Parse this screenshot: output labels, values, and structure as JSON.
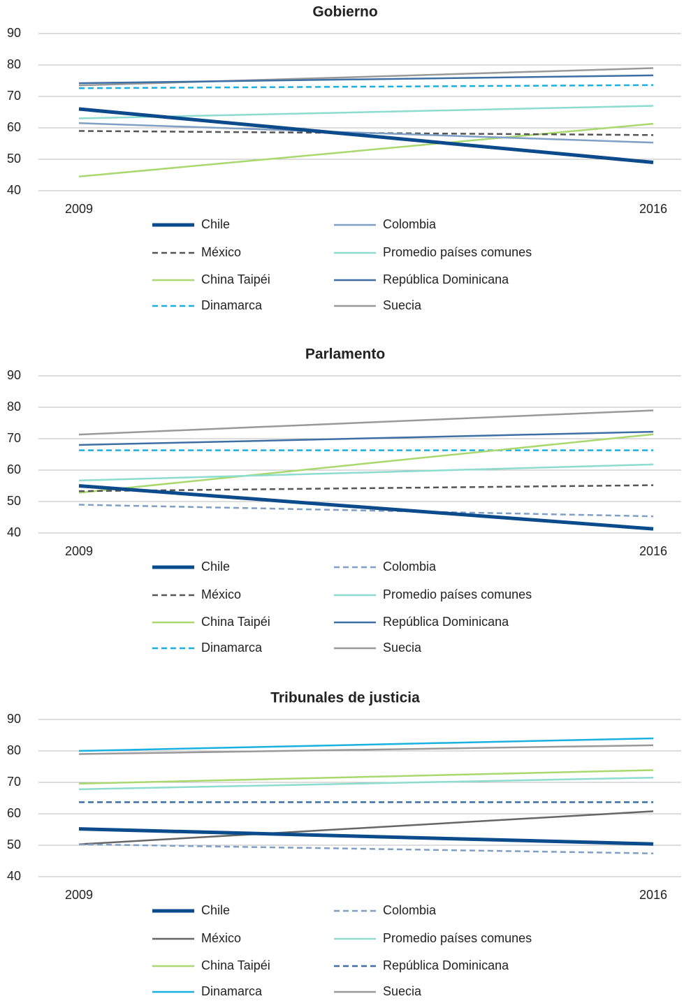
{
  "chart_data": [
    {
      "type": "line",
      "title": "Gobierno",
      "categories": [
        "2009",
        "2016"
      ],
      "ylim": [
        40,
        90
      ],
      "yticks": [
        40,
        50,
        60,
        70,
        80,
        90
      ],
      "grid": true,
      "series": [
        {
          "name": "Chile",
          "color": "#0b4a8b",
          "dash": false,
          "width": 5,
          "values": [
            66,
            49
          ]
        },
        {
          "name": "Colombia",
          "color": "#7f9fc5",
          "dash": false,
          "width": 2.5,
          "values": [
            61.5,
            55.3
          ]
        },
        {
          "name": "México",
          "color": "#555555",
          "dash": true,
          "width": 2.5,
          "values": [
            59,
            57.7
          ]
        },
        {
          "name": "Promedio países comunes",
          "color": "#8cdccf",
          "dash": false,
          "width": 2.5,
          "values": [
            63,
            67
          ]
        },
        {
          "name": "China Taipéi",
          "color": "#a8d86e",
          "dash": false,
          "width": 2.5,
          "values": [
            44.5,
            61.3
          ]
        },
        {
          "name": "República Dominicana",
          "color": "#3d6fa5",
          "dash": false,
          "width": 2.5,
          "values": [
            74.2,
            76.7
          ]
        },
        {
          "name": "Dinamarca",
          "color": "#1ab0e0",
          "dash": true,
          "width": 2.5,
          "values": [
            72.6,
            73.6
          ]
        },
        {
          "name": "Suecia",
          "color": "#999999",
          "dash": false,
          "width": 2.5,
          "values": [
            73.5,
            79
          ]
        }
      ]
    },
    {
      "type": "line",
      "title": "Parlamento",
      "categories": [
        "2009",
        "2016"
      ],
      "ylim": [
        40,
        90
      ],
      "yticks": [
        40,
        50,
        60,
        70,
        80,
        90
      ],
      "grid": true,
      "series": [
        {
          "name": "Chile",
          "color": "#0b4a8b",
          "dash": false,
          "width": 5,
          "values": [
            55,
            41.3
          ]
        },
        {
          "name": "Colombia",
          "color": "#7f9fc5",
          "dash": true,
          "width": 2.5,
          "values": [
            49,
            45.3
          ]
        },
        {
          "name": "México",
          "color": "#555555",
          "dash": true,
          "width": 2.5,
          "values": [
            53.3,
            55.2
          ]
        },
        {
          "name": "Promedio países comunes",
          "color": "#8cdccf",
          "dash": false,
          "width": 2.5,
          "values": [
            56.7,
            61.8
          ]
        },
        {
          "name": "China Taipéi",
          "color": "#a8d86e",
          "dash": false,
          "width": 2.5,
          "values": [
            52.8,
            71.4
          ]
        },
        {
          "name": "República Dominicana",
          "color": "#3d6fa5",
          "dash": false,
          "width": 2.5,
          "values": [
            68,
            72.2
          ]
        },
        {
          "name": "Dinamarca",
          "color": "#1ab0e0",
          "dash": true,
          "width": 2.5,
          "values": [
            66.3,
            66.3
          ]
        },
        {
          "name": "Suecia",
          "color": "#999999",
          "dash": false,
          "width": 2.5,
          "values": [
            71.3,
            79
          ]
        }
      ]
    },
    {
      "type": "line",
      "title": "Tribunales de justicia",
      "categories": [
        "2009",
        "2016"
      ],
      "ylim": [
        40,
        90
      ],
      "yticks": [
        40,
        50,
        60,
        70,
        80,
        90
      ],
      "grid": true,
      "series": [
        {
          "name": "Chile",
          "color": "#0b4a8b",
          "dash": false,
          "width": 5,
          "values": [
            55.2,
            50.4
          ]
        },
        {
          "name": "Colombia",
          "color": "#7f9fc5",
          "dash": true,
          "width": 2.5,
          "values": [
            50.3,
            47.4
          ]
        },
        {
          "name": "México",
          "color": "#666666",
          "dash": false,
          "width": 2.5,
          "values": [
            50.3,
            60.8
          ]
        },
        {
          "name": "Promedio países comunes",
          "color": "#8cdccf",
          "dash": false,
          "width": 2.5,
          "values": [
            67.8,
            71.5
          ]
        },
        {
          "name": "China Taipéi",
          "color": "#a8d86e",
          "dash": false,
          "width": 2.5,
          "values": [
            69.6,
            73.9
          ]
        },
        {
          "name": "República Dominicana",
          "color": "#3d6fa5",
          "dash": true,
          "width": 2.5,
          "values": [
            63.7,
            63.7
          ]
        },
        {
          "name": "Dinamarca",
          "color": "#1ab0e0",
          "dash": false,
          "width": 2.5,
          "values": [
            80,
            84
          ]
        },
        {
          "name": "Suecia",
          "color": "#999999",
          "dash": false,
          "width": 2.5,
          "values": [
            79,
            81.8
          ]
        }
      ]
    }
  ]
}
